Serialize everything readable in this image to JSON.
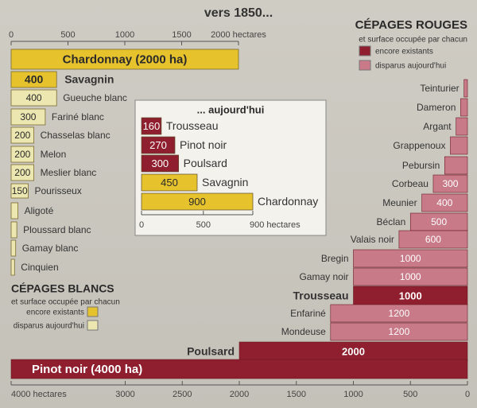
{
  "title": "vers 1850...",
  "colors": {
    "white_existing": "#e6c22c",
    "white_disappeared": "#ece6b0",
    "red_existing": "#8f1f2e",
    "red_disappeared": "#c97a88",
    "axis": "#555555",
    "inset_bg": "#f4f2ec"
  },
  "chart_data": [
    {
      "type": "bar",
      "name": "cepages-blancs-1850",
      "orientation": "horizontal",
      "unit": "hectares",
      "xlim": [
        0,
        2000
      ],
      "ticks": [
        0,
        500,
        1000,
        1500,
        2000
      ],
      "tick_labels": [
        "0",
        "500",
        "1000",
        "1500",
        "2000 hectares"
      ],
      "legend_title": "CÉPAGES BLANCS",
      "legend_subtitle": "et surface occupée par chacun",
      "legend_items": [
        {
          "label": "encore existants",
          "status": "existing"
        },
        {
          "label": "disparus aujourd'hui",
          "status": "disappeared"
        }
      ],
      "bars": [
        {
          "name": "Chardonnay",
          "value": 2000,
          "status": "existing",
          "inside_label": "Chardonnay (2000 ha)",
          "value_label": ""
        },
        {
          "name": "Savagnin",
          "value": 400,
          "status": "existing",
          "inside_label": "",
          "value_label": "400"
        },
        {
          "name": "Gueuche blanc",
          "value": 400,
          "status": "disappeared",
          "inside_label": "",
          "value_label": "400"
        },
        {
          "name": "Fariné blanc",
          "value": 300,
          "status": "disappeared",
          "inside_label": "",
          "value_label": "300"
        },
        {
          "name": "Chasselas blanc",
          "value": 200,
          "status": "disappeared",
          "inside_label": "",
          "value_label": "200"
        },
        {
          "name": "Melon",
          "value": 200,
          "status": "disappeared",
          "inside_label": "",
          "value_label": "200"
        },
        {
          "name": "Meslier blanc",
          "value": 200,
          "status": "disappeared",
          "inside_label": "",
          "value_label": "200"
        },
        {
          "name": "Pourisseux",
          "value": 150,
          "status": "disappeared",
          "inside_label": "",
          "value_label": "150"
        },
        {
          "name": "Aligoté",
          "value": 60,
          "status": "disappeared",
          "inside_label": "",
          "value_label": ""
        },
        {
          "name": "Ploussard blanc",
          "value": 50,
          "status": "disappeared",
          "inside_label": "",
          "value_label": ""
        },
        {
          "name": "Gamay blanc",
          "value": 40,
          "status": "disappeared",
          "inside_label": "",
          "value_label": ""
        },
        {
          "name": "Cinquien",
          "value": 30,
          "status": "disappeared",
          "inside_label": "",
          "value_label": ""
        }
      ]
    },
    {
      "type": "bar",
      "name": "cepages-rouges-1850",
      "orientation": "horizontal-reversed",
      "unit": "hectares",
      "xlim": [
        0,
        4000
      ],
      "ticks": [
        4000,
        3000,
        2500,
        2000,
        1500,
        1000,
        500,
        0
      ],
      "tick_labels": [
        "4000 hectares",
        "3000",
        "2500",
        "2000",
        "1500",
        "1000",
        "500",
        "0"
      ],
      "legend_title": "CÉPAGES ROUGES",
      "legend_subtitle": "et surface occupée par chacun",
      "legend_items": [
        {
          "label": "encore existants",
          "status": "existing"
        },
        {
          "label": "disparus aujourd'hui",
          "status": "disappeared"
        }
      ],
      "bars": [
        {
          "name": "Teinturier",
          "value": 30,
          "status": "disappeared",
          "value_label": ""
        },
        {
          "name": "Dameron",
          "value": 60,
          "status": "disappeared",
          "value_label": ""
        },
        {
          "name": "Argant",
          "value": 100,
          "status": "disappeared",
          "value_label": ""
        },
        {
          "name": "Grappenoux",
          "value": 150,
          "status": "disappeared",
          "value_label": ""
        },
        {
          "name": "Pebursin",
          "value": 200,
          "status": "disappeared",
          "value_label": ""
        },
        {
          "name": "Corbeau",
          "value": 300,
          "status": "disappeared",
          "value_label": "300"
        },
        {
          "name": "Meunier",
          "value": 400,
          "status": "disappeared",
          "value_label": "400"
        },
        {
          "name": "Béclan",
          "value": 500,
          "status": "disappeared",
          "value_label": "500"
        },
        {
          "name": "Valais noir",
          "value": 600,
          "status": "disappeared",
          "value_label": "600"
        },
        {
          "name": "Bregin",
          "value": 1000,
          "status": "disappeared",
          "value_label": "1000"
        },
        {
          "name": "Gamay noir",
          "value": 1000,
          "status": "disappeared",
          "value_label": "1000"
        },
        {
          "name": "Trousseau",
          "value": 1000,
          "status": "existing",
          "value_label": "1000"
        },
        {
          "name": "Enfariné",
          "value": 1200,
          "status": "disappeared",
          "value_label": "1200"
        },
        {
          "name": "Mondeuse",
          "value": 1200,
          "status": "disappeared",
          "value_label": "1200"
        },
        {
          "name": "Poulsard",
          "value": 2000,
          "status": "existing",
          "value_label": "2000"
        },
        {
          "name": "Pinot noir",
          "value": 4000,
          "status": "existing",
          "value_label": "",
          "inside_label": "Pinot noir (4000 ha)"
        }
      ]
    },
    {
      "type": "bar",
      "name": "aujourdhui",
      "orientation": "horizontal",
      "title": "... aujourd'hui",
      "unit": "hectares",
      "xlim": [
        0,
        900
      ],
      "ticks": [
        0,
        500,
        900
      ],
      "tick_labels": [
        "0",
        "500",
        "900 hectares"
      ],
      "bars": [
        {
          "name": "Trousseau",
          "value": 160,
          "color_group": "red",
          "value_label": "160"
        },
        {
          "name": "Pinot noir",
          "value": 270,
          "color_group": "red",
          "value_label": "270"
        },
        {
          "name": "Poulsard",
          "value": 300,
          "color_group": "red",
          "value_label": "300"
        },
        {
          "name": "Savagnin",
          "value": 450,
          "color_group": "white",
          "value_label": "450"
        },
        {
          "name": "Chardonnay",
          "value": 900,
          "color_group": "white",
          "value_label": "900"
        }
      ]
    }
  ]
}
